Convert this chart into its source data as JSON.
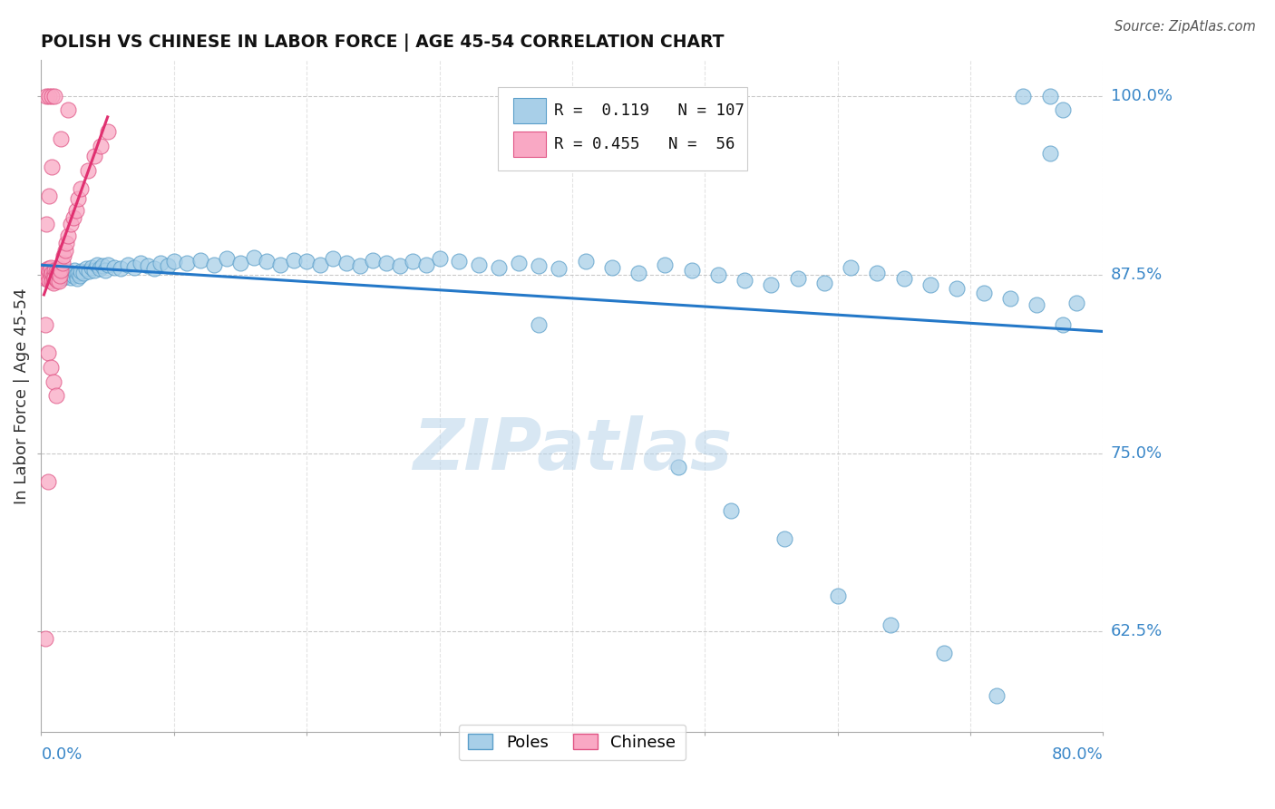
{
  "title": "POLISH VS CHINESE IN LABOR FORCE | AGE 45-54 CORRELATION CHART",
  "source": "Source: ZipAtlas.com",
  "ylabel": "In Labor Force | Age 45-54",
  "xlim": [
    0.0,
    0.8
  ],
  "ylim": [
    0.555,
    1.025
  ],
  "yticks": [
    0.625,
    0.75,
    0.875,
    1.0
  ],
  "xticks": [
    0.0,
    0.1,
    0.2,
    0.3,
    0.4,
    0.5,
    0.6,
    0.7,
    0.8
  ],
  "poles_R": 0.119,
  "poles_N": 107,
  "chinese_R": 0.455,
  "chinese_N": 56,
  "poles_color": "#a8cfe8",
  "poles_edge_color": "#5a9ec9",
  "chinese_color": "#f9a8c4",
  "chinese_edge_color": "#e05585",
  "trend_poles_color": "#2478c8",
  "trend_chinese_color": "#e03070",
  "watermark": "ZIPatlas",
  "poles_x": [
    0.002,
    0.003,
    0.004,
    0.005,
    0.006,
    0.007,
    0.008,
    0.009,
    0.01,
    0.011,
    0.012,
    0.013,
    0.014,
    0.015,
    0.016,
    0.017,
    0.018,
    0.019,
    0.02,
    0.021,
    0.022,
    0.023,
    0.024,
    0.025,
    0.026,
    0.027,
    0.028,
    0.029,
    0.03,
    0.032,
    0.034,
    0.036,
    0.038,
    0.04,
    0.042,
    0.044,
    0.046,
    0.048,
    0.05,
    0.055,
    0.06,
    0.065,
    0.07,
    0.075,
    0.08,
    0.085,
    0.09,
    0.095,
    0.1,
    0.11,
    0.12,
    0.13,
    0.14,
    0.15,
    0.16,
    0.17,
    0.18,
    0.19,
    0.2,
    0.21,
    0.22,
    0.23,
    0.24,
    0.25,
    0.26,
    0.27,
    0.28,
    0.29,
    0.3,
    0.315,
    0.33,
    0.345,
    0.36,
    0.375,
    0.39,
    0.41,
    0.43,
    0.45,
    0.47,
    0.49,
    0.51,
    0.53,
    0.55,
    0.57,
    0.59,
    0.61,
    0.63,
    0.65,
    0.67,
    0.69,
    0.71,
    0.73,
    0.75,
    0.76,
    0.77,
    0.375,
    0.48,
    0.52,
    0.56,
    0.6,
    0.64,
    0.68,
    0.72,
    0.74,
    0.76,
    0.77,
    0.78
  ],
  "poles_y": [
    0.875,
    0.878,
    0.872,
    0.876,
    0.874,
    0.871,
    0.877,
    0.873,
    0.875,
    0.879,
    0.874,
    0.876,
    0.872,
    0.878,
    0.875,
    0.873,
    0.876,
    0.874,
    0.877,
    0.875,
    0.873,
    0.876,
    0.874,
    0.878,
    0.875,
    0.872,
    0.876,
    0.874,
    0.877,
    0.876,
    0.879,
    0.877,
    0.88,
    0.878,
    0.882,
    0.879,
    0.881,
    0.878,
    0.882,
    0.88,
    0.879,
    0.882,
    0.88,
    0.883,
    0.881,
    0.879,
    0.883,
    0.881,
    0.884,
    0.883,
    0.885,
    0.882,
    0.886,
    0.883,
    0.887,
    0.884,
    0.882,
    0.885,
    0.884,
    0.882,
    0.886,
    0.883,
    0.881,
    0.885,
    0.883,
    0.881,
    0.884,
    0.882,
    0.886,
    0.884,
    0.882,
    0.88,
    0.883,
    0.881,
    0.879,
    0.884,
    0.88,
    0.876,
    0.882,
    0.878,
    0.875,
    0.871,
    0.868,
    0.872,
    0.869,
    0.88,
    0.876,
    0.872,
    0.868,
    0.865,
    0.862,
    0.858,
    0.854,
    0.96,
    0.99,
    0.84,
    0.74,
    0.71,
    0.69,
    0.65,
    0.63,
    0.61,
    0.58,
    1.0,
    1.0,
    0.84,
    0.855
  ],
  "chinese_x": [
    0.002,
    0.003,
    0.003,
    0.004,
    0.004,
    0.005,
    0.005,
    0.006,
    0.006,
    0.007,
    0.007,
    0.008,
    0.008,
    0.009,
    0.009,
    0.01,
    0.01,
    0.011,
    0.011,
    0.012,
    0.012,
    0.013,
    0.013,
    0.014,
    0.014,
    0.015,
    0.016,
    0.017,
    0.018,
    0.019,
    0.02,
    0.022,
    0.024,
    0.026,
    0.028,
    0.03,
    0.035,
    0.04,
    0.045,
    0.05,
    0.003,
    0.005,
    0.007,
    0.009,
    0.011,
    0.004,
    0.006,
    0.008,
    0.015,
    0.02,
    0.004,
    0.006,
    0.008,
    0.01,
    0.003,
    0.005
  ],
  "chinese_y": [
    0.875,
    0.878,
    0.872,
    0.876,
    0.873,
    0.879,
    0.874,
    0.877,
    0.871,
    0.875,
    0.88,
    0.876,
    0.87,
    0.874,
    0.869,
    0.878,
    0.873,
    0.877,
    0.872,
    0.876,
    0.871,
    0.875,
    0.87,
    0.879,
    0.874,
    0.878,
    0.883,
    0.888,
    0.892,
    0.897,
    0.902,
    0.91,
    0.915,
    0.92,
    0.928,
    0.935,
    0.948,
    0.958,
    0.965,
    0.975,
    0.84,
    0.82,
    0.81,
    0.8,
    0.79,
    0.91,
    0.93,
    0.95,
    0.97,
    0.99,
    1.0,
    1.0,
    1.0,
    1.0,
    0.62,
    0.73
  ]
}
